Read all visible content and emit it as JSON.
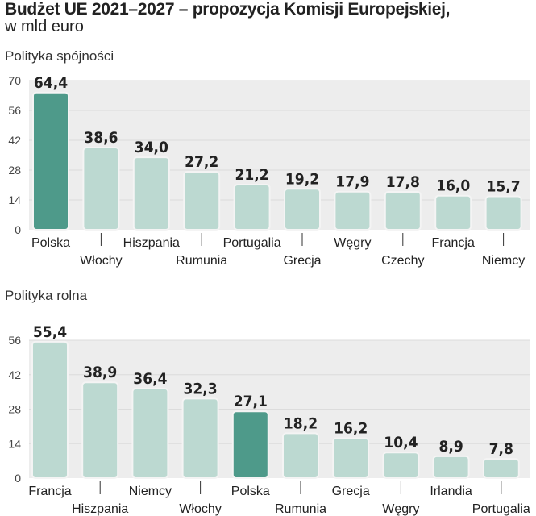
{
  "title": "Budżet UE 2021–2027 – propozycja Komisji Europejskiej,",
  "subtitle": "w mld euro",
  "colors": {
    "highlight": "#4e9a8a",
    "bar": "#bcd9d1",
    "panel": "#ededed",
    "grid": "#dcdcdc"
  },
  "chart_data": [
    {
      "type": "bar",
      "title": "Polityka spójności",
      "categories": [
        "Polska",
        "Włochy",
        "Hiszpania",
        "Rumunia",
        "Portugalia",
        "Grecja",
        "Węgry",
        "Czechy",
        "Francja",
        "Niemcy"
      ],
      "values": [
        64.4,
        38.6,
        34.0,
        27.2,
        21.2,
        19.2,
        17.9,
        17.8,
        16.0,
        15.7
      ],
      "value_labels": [
        "64,4",
        "38,6",
        "34,0",
        "27,2",
        "21,2",
        "19,2",
        "17,9",
        "17,8",
        "16,0",
        "15,7"
      ],
      "highlight": "Polska",
      "yticks": [
        0,
        14,
        28,
        42,
        56,
        70
      ],
      "ylim": [
        0,
        70
      ],
      "grid": true
    },
    {
      "type": "bar",
      "title": "Polityka rolna",
      "categories": [
        "Francja",
        "Hiszpania",
        "Niemcy",
        "Włochy",
        "Polska",
        "Rumunia",
        "Grecja",
        "Węgry",
        "Irlandia",
        "Portugalia"
      ],
      "values": [
        55.4,
        38.9,
        36.4,
        32.3,
        27.1,
        18.2,
        16.2,
        10.4,
        8.9,
        7.8
      ],
      "value_labels": [
        "55,4",
        "38,9",
        "36,4",
        "32,3",
        "27,1",
        "18,2",
        "16,2",
        "10,4",
        "8,9",
        "7,8"
      ],
      "highlight": "Polska",
      "yticks": [
        0,
        14,
        28,
        42,
        56
      ],
      "ylim": [
        0,
        56
      ],
      "grid": true
    }
  ]
}
